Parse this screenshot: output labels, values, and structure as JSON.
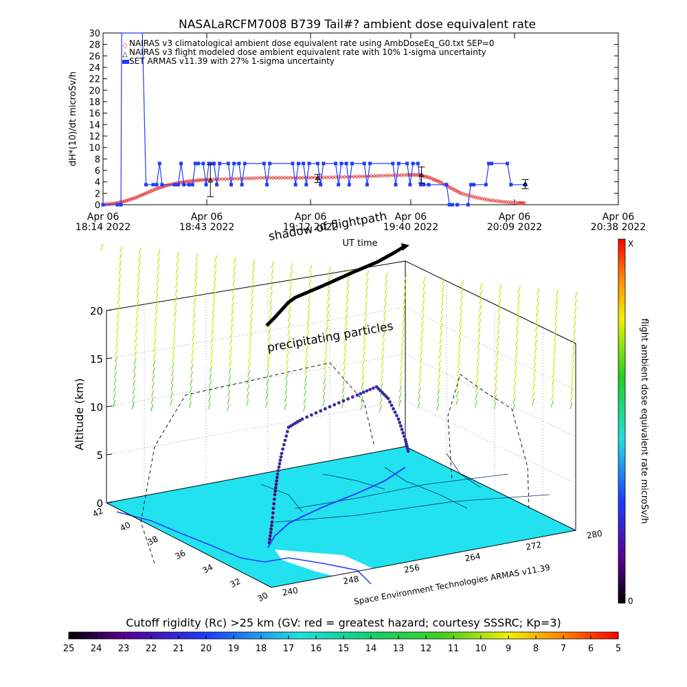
{
  "chart_data": [
    {
      "type": "line",
      "title": "NASALaRCFM7008  B739 Tail#? ambient dose equivalent rate",
      "ylabel": "dH*(10)/dt microSv/h",
      "xlabel": "UT time",
      "ylim": [
        0,
        30
      ],
      "yticks": [
        0,
        2,
        4,
        6,
        8,
        10,
        12,
        14,
        16,
        18,
        20,
        22,
        24,
        26,
        28,
        30
      ],
      "xlim_minutes": [
        0,
        144
      ],
      "xticks": [
        {
          "m": 0,
          "l1": "Apr 06",
          "l2": "18:14 2022"
        },
        {
          "m": 29,
          "l1": "Apr 06",
          "l2": "18:43 2022"
        },
        {
          "m": 58,
          "l1": "Apr 06",
          "l2": "19:12 2022"
        },
        {
          "m": 86,
          "l1": "Apr 06",
          "l2": "19:40 2022"
        },
        {
          "m": 115,
          "l1": "Apr 06",
          "l2": "20:09 2022"
        },
        {
          "m": 144,
          "l1": "Apr 06",
          "l2": "20:38 2022"
        }
      ],
      "legend": [
        "NAIRAS v3 climatological ambient dose equivalent rate using AmbDoseEq_G0.txt SEP=0",
        "NAIRAS v3 flight modeled dose ambient equivalent rate with 10% 1-sigma uncertainty",
        "SET ARMAS v11.39 with 27% 1-sigma uncertainty"
      ],
      "legend_position": "top-left",
      "series": [
        {
          "name": "NAIRAS v3 climatological ambient dose equivalent rate using AmbDoseEq_G0.txt SEP=0",
          "color": "#e03c3c",
          "x": [
            0,
            3,
            6,
            9,
            12,
            15,
            18,
            21,
            24,
            27,
            30,
            35,
            40,
            45,
            50,
            55,
            60,
            65,
            70,
            75,
            80,
            85,
            88,
            91,
            94,
            97,
            100,
            104,
            108,
            112,
            116,
            118
          ],
          "values": [
            0,
            0.2,
            0.6,
            1.2,
            2.0,
            2.8,
            3.4,
            3.8,
            4.1,
            4.3,
            4.4,
            4.5,
            4.6,
            4.7,
            4.7,
            4.7,
            4.75,
            4.8,
            4.9,
            5.0,
            5.1,
            5.2,
            5.2,
            4.8,
            4.0,
            3.0,
            2.0,
            1.3,
            0.8,
            0.5,
            0.3,
            0.3
          ]
        },
        {
          "name": "NAIRAS v3 flight modeled dose ambient equivalent rate with 10% 1-sigma uncertainty",
          "color": "#000000",
          "x": [
            30,
            60,
            89,
            118
          ],
          "values": [
            4.2,
            4.6,
            5.2,
            3.6
          ],
          "err": [
            2.8,
            0.7,
            1.4,
            0.8
          ]
        },
        {
          "name": "SET ARMAS v11.39 with 27% 1-sigma uncertainty",
          "color": "#1e3cff",
          "x": [
            0,
            4,
            5,
            5.2,
            6,
            6.5,
            11,
            12,
            14,
            15,
            15.8,
            16.5,
            20,
            21,
            21.8,
            22.6,
            24,
            25,
            25.8,
            26.6,
            28,
            28.8,
            29.6,
            30,
            31,
            31.8,
            32.6,
            35,
            35.8,
            36.6,
            38,
            38.8,
            39.6,
            45,
            45.8,
            46.6,
            53,
            53.8,
            54.6,
            56,
            56.8,
            57.6,
            60,
            60.8,
            61.6,
            65,
            65.8,
            66.6,
            68,
            68.8,
            69.6,
            73,
            73.8,
            74.6,
            81,
            81.8,
            82.6,
            85,
            85.8,
            86.6,
            88,
            88.8,
            89.6,
            91,
            96,
            96.8,
            97.6,
            99,
            102,
            102.8,
            103.6,
            107,
            107.8,
            108.6,
            113,
            114,
            118
          ],
          "values": [
            0,
            0,
            0,
            30,
            30,
            30,
            30,
            3.5,
            3.5,
            3.5,
            7.2,
            3.5,
            3.5,
            3.5,
            7.2,
            3.5,
            3.5,
            3.5,
            7.2,
            7.2,
            7.2,
            3.5,
            7.2,
            7.2,
            7.2,
            3.5,
            7.2,
            7.2,
            3.5,
            7.2,
            7.2,
            3.5,
            7.2,
            7.2,
            3.5,
            7.2,
            7.2,
            3.5,
            7.2,
            7.2,
            3.5,
            7.2,
            7.2,
            3.5,
            7.2,
            7.2,
            3.5,
            7.2,
            7.2,
            3.5,
            7.2,
            7.2,
            3.5,
            7.2,
            7.2,
            3.5,
            7.2,
            7.2,
            3.5,
            7.2,
            7.2,
            3.5,
            3.5,
            3.5,
            3.5,
            0,
            0,
            0,
            0,
            3.5,
            3.5,
            3.5,
            7.2,
            7.2,
            7.2,
            3.5,
            3.5
          ]
        }
      ]
    },
    {
      "type": "scatter",
      "subtype": "3d-flight-track",
      "zlabel": "Altitude (km)",
      "zlim": [
        0,
        20
      ],
      "zticks": [
        0,
        5,
        10,
        15,
        20
      ],
      "lat_ticks": [
        42,
        40,
        38,
        36,
        34,
        32,
        30
      ],
      "lon_ticks": [
        240,
        248,
        256,
        264,
        272,
        280
      ],
      "annotations": [
        "shadow of flightpath",
        "precipitating particles"
      ],
      "credit": "Space Environment Technologies ARMAS v11.39",
      "colorbar_label": "flight ambient dose equivalent rate microSv/h",
      "colorbar_top": "X",
      "colorbar_bottom": "0"
    },
    {
      "type": "heatmap",
      "title": "Cutoff rigidity (Rc) >25 km (GV: red = greatest hazard; courtesy SSSRC; Kp=3)",
      "ticks": [
        25,
        24,
        23,
        22,
        21,
        20,
        19,
        18,
        17,
        16,
        15,
        14,
        13,
        12,
        11,
        10,
        9,
        8,
        7,
        6,
        5
      ]
    }
  ]
}
